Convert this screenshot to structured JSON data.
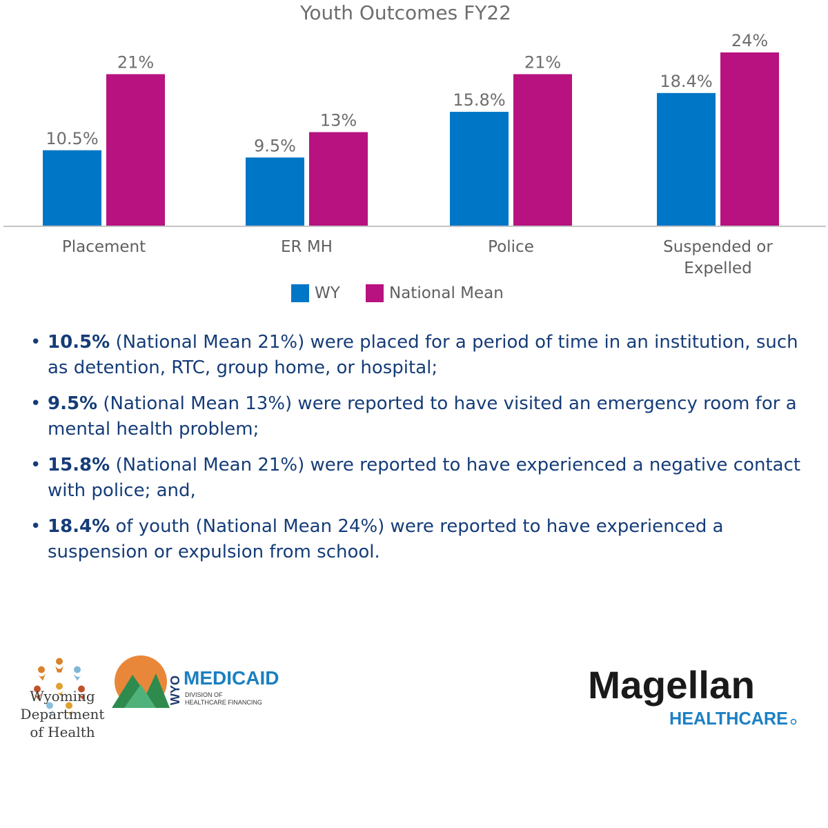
{
  "chart_data": {
    "type": "bar",
    "title": "Youth Outcomes FY22",
    "categories": [
      "Placement",
      "ER MH",
      "Police",
      "Suspended or Expelled"
    ],
    "series": [
      {
        "name": "WY",
        "color": "#0076c6",
        "values": [
          10.5,
          9.5,
          15.8,
          18.4
        ],
        "labels": [
          "10.5%",
          "9.5%",
          "15.8%",
          "18.4%"
        ]
      },
      {
        "name": "National Mean",
        "color": "#b7127f",
        "values": [
          21,
          13,
          21,
          24
        ],
        "labels": [
          "21%",
          "13%",
          "21%",
          "24%"
        ]
      }
    ],
    "ylim": [
      0,
      24
    ],
    "grid": false,
    "legend": "bottom"
  },
  "bullets": [
    {
      "bold": "10.5%",
      "text": " (National Mean 21%) were placed for a period of time in an institution, such as detention, RTC, group home, or hospital;"
    },
    {
      "bold": "9.5%",
      "text": " (National Mean 13%) were reported to have visited an emergency room for a mental health problem;"
    },
    {
      "bold": "15.8%",
      "text": " (National Mean 21%) were reported to have experienced a negative contact with police; and,"
    },
    {
      "bold": "18.4%",
      "text": " of youth (National Mean 24%) were reported to have experienced a suspension or expulsion from school."
    }
  ],
  "logos": {
    "wdh_lines": [
      "Wyoming",
      "Department",
      "of Health"
    ],
    "medicaid_wyo": "WYO",
    "medicaid_main": "MEDICAID",
    "medicaid_sub1": "DIVISION OF",
    "medicaid_sub2": "HEALTHCARE FINANCING",
    "magellan_main": "Magellan",
    "magellan_sub": "HEALTHCARE"
  },
  "colors": {
    "bullet_text": "#153c78",
    "wy": "#0076c6",
    "national": "#b7127f"
  }
}
